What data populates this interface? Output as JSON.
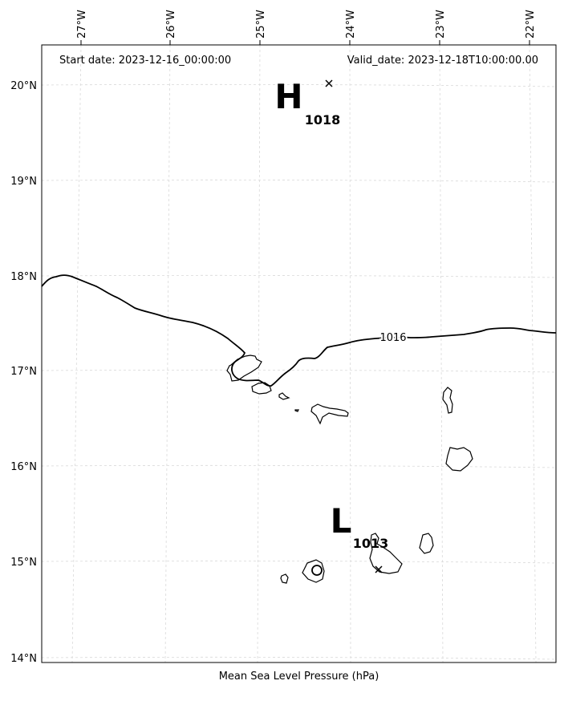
{
  "header": {
    "start_date": "Start date: 2023-12-16_00:00:00",
    "valid_date": "Valid_date: 2023-12-18T10:00:00.00"
  },
  "axes": {
    "xlabel": "Mean Sea Level Pressure (hPa)",
    "lon_ticks": [
      -27,
      -26,
      -25,
      -24,
      -23,
      -22
    ],
    "lon_tick_labels": [
      "27°W",
      "26°W",
      "25°W",
      "24°W",
      "23°W",
      "22°W"
    ],
    "lat_ticks": [
      20,
      19,
      18,
      17,
      16,
      15,
      14
    ],
    "lat_tick_labels": [
      "20°N",
      "19°N",
      "18°N",
      "17°N",
      "16°N",
      "15°N",
      "14°N"
    ],
    "grid": true
  },
  "pressure_centers": [
    {
      "type": "H",
      "value": "1018",
      "lon": -24.23,
      "lat": 20.02
    },
    {
      "type": "L",
      "value": "1013",
      "lon": -23.7,
      "lat": 14.94
    }
  ],
  "isobars": [
    {
      "value": "1016"
    }
  ],
  "colors": {
    "lines": "#000000",
    "grid": "#d9d9d9",
    "background": "#ffffff"
  }
}
